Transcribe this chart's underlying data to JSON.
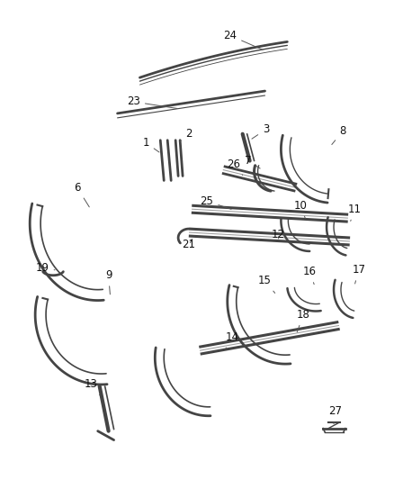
{
  "bg_color": "#ffffff",
  "line_color": "#444444",
  "text_color": "#111111",
  "fig_w": 4.38,
  "fig_h": 5.33,
  "dpi": 100
}
